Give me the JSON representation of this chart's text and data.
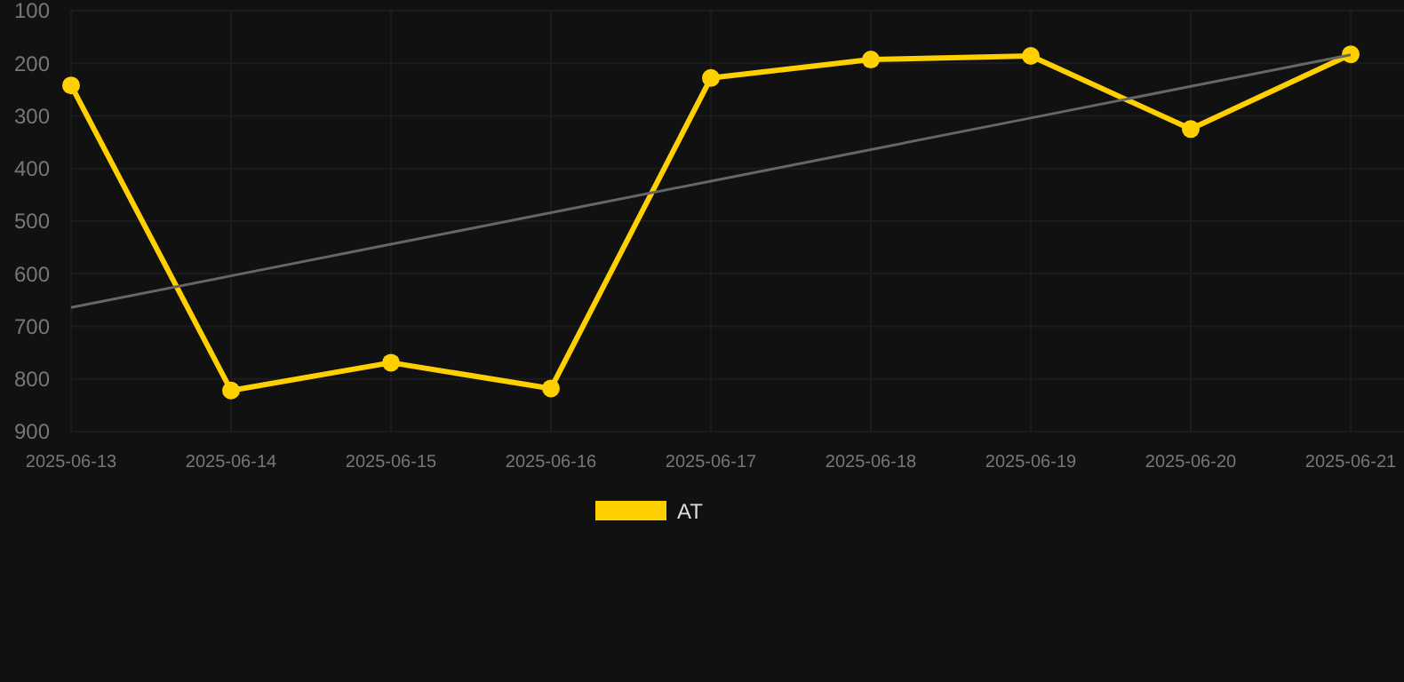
{
  "chart_data": {
    "type": "line",
    "categories": [
      "2025-06-13",
      "2025-06-14",
      "2025-06-15",
      "2025-06-16",
      "2025-06-17",
      "2025-06-18",
      "2025-06-19",
      "2025-06-20",
      "2025-06-21"
    ],
    "series": [
      {
        "name": "AT",
        "color": "#ffd000",
        "values": [
          242,
          822,
          769,
          818,
          228,
          193,
          186,
          325,
          183
        ],
        "marker": "circle"
      },
      {
        "type": "line",
        "color": "#666666",
        "values": [
          664,
          604,
          544,
          484,
          424,
          364,
          304,
          244,
          184
        ],
        "marker": "none"
      }
    ],
    "ylim": [
      900,
      100
    ],
    "yticks": [
      100,
      200,
      300,
      400,
      500,
      600,
      700,
      800,
      900
    ],
    "grid": true,
    "legend": "bottom"
  }
}
